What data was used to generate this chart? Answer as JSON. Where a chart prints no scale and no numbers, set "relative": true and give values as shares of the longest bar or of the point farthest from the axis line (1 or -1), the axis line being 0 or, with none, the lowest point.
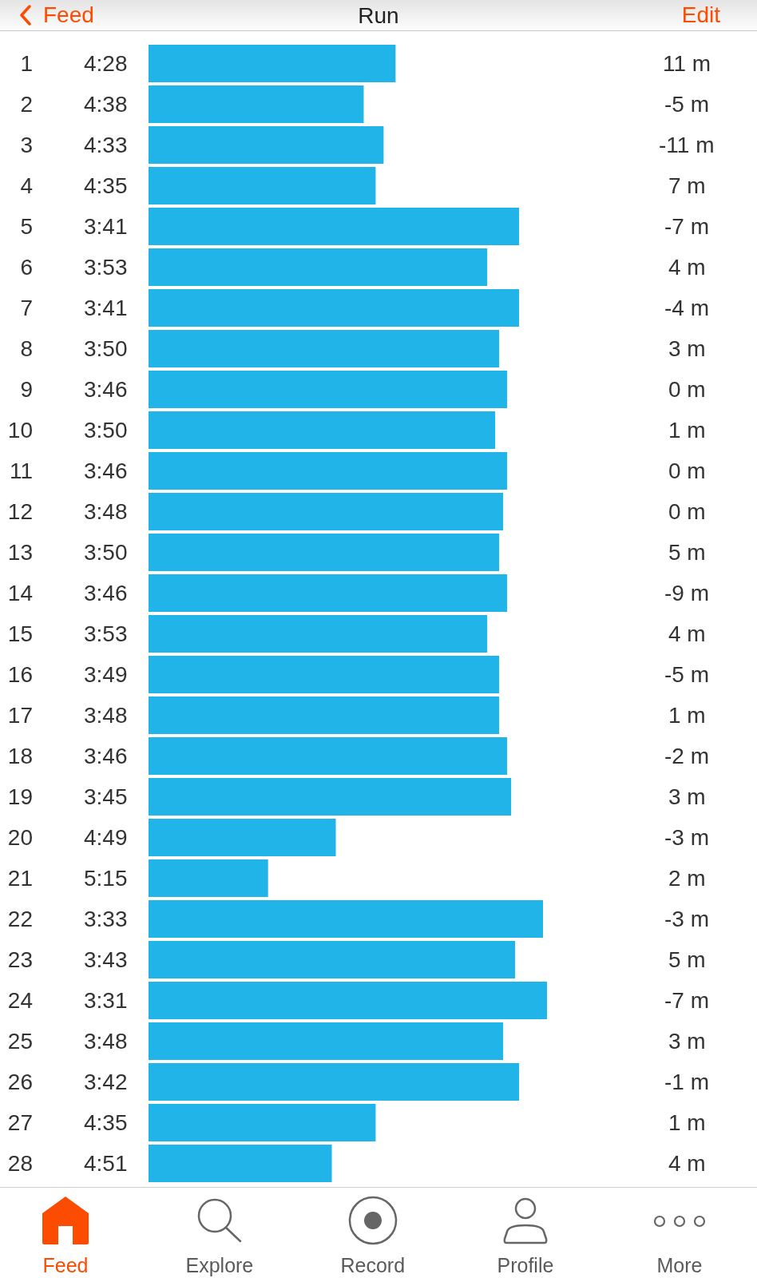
{
  "chart_data": {
    "type": "bar",
    "orientation": "horizontal",
    "relative": true,
    "title": "Run",
    "categories": [
      "1",
      "2",
      "3",
      "4",
      "5",
      "6",
      "7",
      "8",
      "9",
      "10",
      "11",
      "12",
      "13",
      "14",
      "15",
      "16",
      "17",
      "18",
      "19",
      "20",
      "21",
      "22",
      "23",
      "24",
      "25",
      "26",
      "27",
      "28"
    ],
    "values": [
      0.62,
      0.54,
      0.59,
      0.57,
      0.93,
      0.85,
      0.93,
      0.88,
      0.9,
      0.87,
      0.9,
      0.89,
      0.88,
      0.9,
      0.85,
      0.88,
      0.88,
      0.9,
      0.91,
      0.47,
      0.3,
      0.99,
      0.92,
      1,
      0.89,
      0.93,
      0.57,
      0.46
    ],
    "tick_labels": "y",
    "color": "#21b4e8",
    "y2_categories": [
      "11 m",
      "-5 m",
      "-11 m",
      "7 m",
      "-7 m",
      "4 m",
      "-4 m",
      "3 m",
      "0 m",
      "1 m",
      "0 m",
      "0 m",
      "5 m",
      "-9 m",
      "4 m",
      "-5 m",
      "1 m",
      "-2 m",
      "3 m",
      "-3 m",
      "2 m",
      "-3 m",
      "5 m",
      "-7 m",
      "3 m",
      "-1 m",
      "1 m",
      "4 m"
    ],
    "annotations": [
      "Feed",
      "Edit",
      "Feed",
      "Explore",
      "Record",
      "Profile",
      "More",
      "4:28",
      "4:38",
      "4:33",
      "4:35",
      "3:41",
      "3:53",
      "3:41",
      "3:50",
      "3:46",
      "3:50",
      "3:46",
      "3:48",
      "3:50",
      "3:46",
      "3:53",
      "3:49",
      "3:48",
      "3:46",
      "3:45",
      "4:49",
      "5:15",
      "3:33",
      "3:43",
      "3:31",
      "3:48",
      "3:42",
      "4:35",
      "4:51"
    ]
  }
}
